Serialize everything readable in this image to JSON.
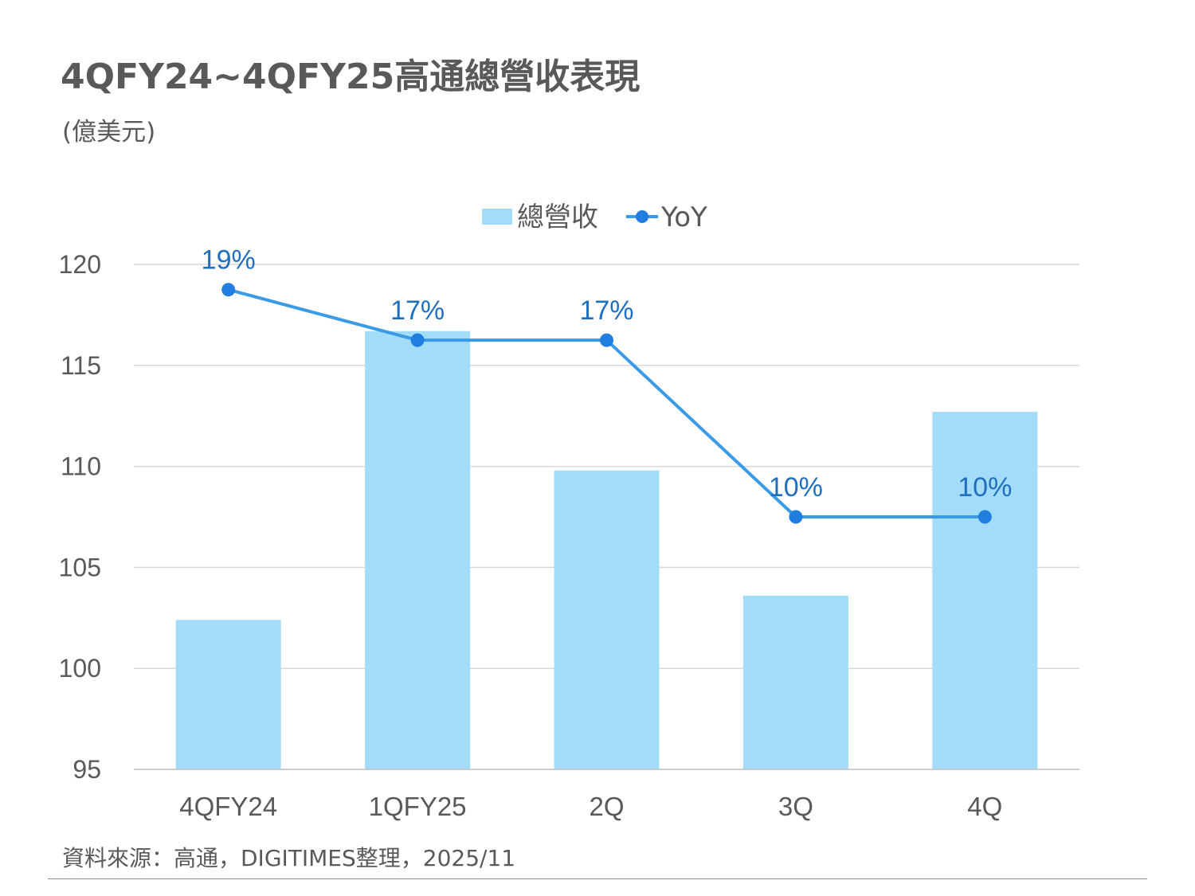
{
  "header": {
    "title": "4QFY24~4QFY25高通總營收表現",
    "unit": "(億美元)"
  },
  "footer": {
    "source": "資料來源：高通，DIGITIMES整理，2025/11"
  },
  "colors": {
    "bar": "#a3dcf9",
    "line": "#3a9ae6",
    "marker": "#1f7ee0",
    "label": "#1f6fc1",
    "grid": "#d9d9d9",
    "axis": "#bfbfbf",
    "text": "#595959"
  },
  "chart_data": {
    "type": "bar",
    "categories": [
      "4QFY24",
      "1QFY25",
      "2Q",
      "3Q",
      "4Q"
    ],
    "ylim": [
      95,
      120
    ],
    "yticks": [
      95,
      100,
      105,
      110,
      115,
      120
    ],
    "grid": true,
    "legend_position": "top-center",
    "series": [
      {
        "name": "總營收",
        "kind": "bar",
        "values": [
          102.4,
          116.7,
          109.8,
          103.6,
          112.7
        ]
      },
      {
        "name": "YoY",
        "kind": "line",
        "plot_values": [
          118.75,
          116.25,
          116.25,
          107.5,
          107.5
        ],
        "labels": [
          "19%",
          "17%",
          "17%",
          "10%",
          "10%"
        ]
      }
    ]
  }
}
